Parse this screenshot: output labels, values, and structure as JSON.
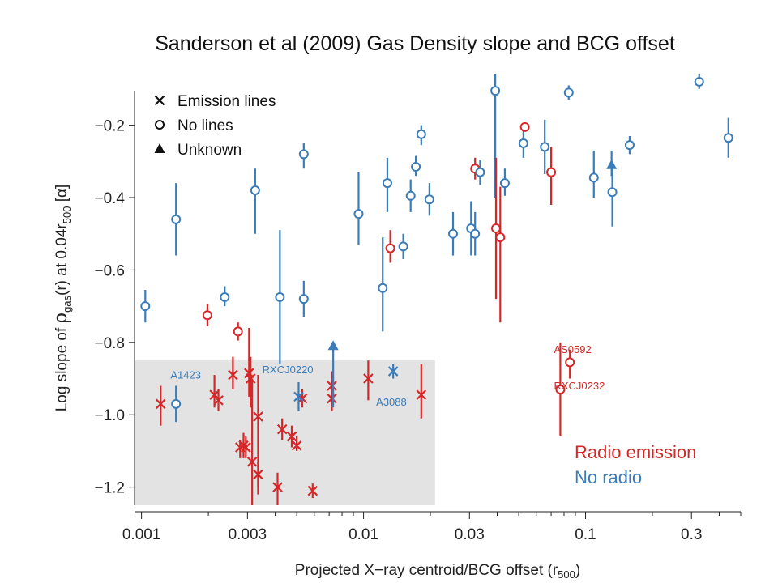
{
  "title": "Sanderson et al (2009)   Gas Density slope and BCG offset",
  "chart_data": {
    "type": "scatter",
    "xscale": "log",
    "xlim": [
      0.00093,
      0.5
    ],
    "ylim": [
      -1.25,
      -0.06
    ],
    "xlabel": {
      "pre": "Projected X−ray centroid/BCG offset (r",
      "sub": "500",
      "post": ")"
    },
    "ylabel": {
      "p1": "Log slope of ",
      "rho": "ρ",
      "sub1": "gas",
      "p2": "(r) at 0.04r",
      "sub2": "500",
      "p3": " [α]"
    },
    "xticks": [
      0.001,
      0.003,
      0.01,
      0.03,
      0.1,
      0.3
    ],
    "xtick_labels": [
      "0.001",
      "0.003",
      "0.01",
      "0.03",
      "0.1",
      "0.3"
    ],
    "yticks": [
      -0.2,
      -0.4,
      -0.6,
      -0.8,
      -1.0,
      -1.2
    ],
    "ytick_labels": [
      "−0.2",
      "−0.4",
      "−0.6",
      "−0.8",
      "−1.0",
      "−1.2"
    ],
    "grid": false,
    "shaded_region": {
      "x": [
        0.00093,
        0.021
      ],
      "y": [
        -1.25,
        -0.85
      ]
    },
    "legend_markers": [
      {
        "symbol": "cross",
        "label": "Emission lines"
      },
      {
        "symbol": "circle",
        "label": "No lines"
      },
      {
        "symbol": "triangle",
        "label": "Unknown"
      }
    ],
    "legend_colors": [
      {
        "label": "Radio emission",
        "color": "#d62728"
      },
      {
        "label": "No radio",
        "color": "#3a7cba"
      }
    ],
    "colors": {
      "radio": "#d62728",
      "no_radio": "#3a7cba"
    },
    "annotations": [
      {
        "text": "A1423",
        "x": 0.00135,
        "y": -0.9,
        "color": "#3a7cba"
      },
      {
        "text": "RXCJ0220",
        "x": 0.0035,
        "y": -0.885,
        "color": "#3a7cba"
      },
      {
        "text": "A3088",
        "x": 0.0114,
        "y": -0.975,
        "color": "#3a7cba"
      },
      {
        "text": "AS0592",
        "x": 0.072,
        "y": -0.83,
        "color": "#d62728"
      },
      {
        "text": "RXCJ0232",
        "x": 0.072,
        "y": -0.93,
        "color": "#d62728"
      }
    ],
    "series": [
      {
        "name": "Emission lines",
        "symbol": "cross",
        "points": [
          {
            "x": 0.00122,
            "y": -0.97,
            "lo": -1.03,
            "hi": -0.92,
            "radio": true
          },
          {
            "x": 0.00213,
            "y": -0.945,
            "lo": -0.98,
            "hi": -0.89,
            "radio": true
          },
          {
            "x": 0.00222,
            "y": -0.96,
            "lo": -0.99,
            "hi": -0.93,
            "radio": true
          },
          {
            "x": 0.00258,
            "y": -0.89,
            "lo": -0.93,
            "hi": -0.84,
            "radio": true
          },
          {
            "x": 0.00278,
            "y": -1.09,
            "lo": -1.12,
            "hi": -1.07,
            "radio": true
          },
          {
            "x": 0.00288,
            "y": -1.085,
            "lo": -1.12,
            "hi": -1.05,
            "radio": true
          },
          {
            "x": 0.00295,
            "y": -1.09,
            "lo": -1.12,
            "hi": -1.06,
            "radio": true
          },
          {
            "x": 0.00305,
            "y": -0.885,
            "lo": -0.95,
            "hi": -0.76,
            "radio": true
          },
          {
            "x": 0.0031,
            "y": -0.9,
            "lo": -0.98,
            "hi": -0.84,
            "radio": true
          },
          {
            "x": 0.00315,
            "y": -1.13,
            "lo": -1.25,
            "hi": -0.9,
            "radio": true
          },
          {
            "x": 0.00335,
            "y": -1.005,
            "lo": -1.22,
            "hi": -0.89,
            "radio": true
          },
          {
            "x": 0.00335,
            "y": -1.165,
            "lo": -1.2,
            "hi": -1.13,
            "radio": true
          },
          {
            "x": 0.0041,
            "y": -1.2,
            "lo": -1.25,
            "hi": -1.16,
            "radio": true
          },
          {
            "x": 0.0043,
            "y": -1.04,
            "lo": -1.07,
            "hi": -1.01,
            "radio": true
          },
          {
            "x": 0.00475,
            "y": -1.06,
            "lo": -1.09,
            "hi": -1.03,
            "radio": true
          },
          {
            "x": 0.005,
            "y": -1.085,
            "lo": -1.1,
            "hi": -1.06,
            "radio": true
          },
          {
            "x": 0.0053,
            "y": -0.955,
            "lo": -0.98,
            "hi": -0.93,
            "radio": true
          },
          {
            "x": 0.0059,
            "y": -1.21,
            "lo": -1.23,
            "hi": -1.19,
            "radio": true
          },
          {
            "x": 0.0072,
            "y": -0.92,
            "lo": -0.97,
            "hi": -0.88,
            "radio": true
          },
          {
            "x": 0.0072,
            "y": -0.955,
            "lo": -0.99,
            "hi": -0.93,
            "radio": true
          },
          {
            "x": 0.0105,
            "y": -0.9,
            "lo": -0.96,
            "hi": -0.85,
            "radio": true
          },
          {
            "x": 0.0182,
            "y": -0.945,
            "lo": -1.01,
            "hi": -0.86,
            "radio": true
          },
          {
            "x": 0.0051,
            "y": -0.95,
            "lo": -0.99,
            "hi": -0.91,
            "radio": false
          },
          {
            "x": 0.0136,
            "y": -0.88,
            "lo": -0.9,
            "hi": -0.86,
            "radio": false
          }
        ]
      },
      {
        "name": "No lines",
        "symbol": "circle",
        "points": [
          {
            "x": 0.00104,
            "y": -0.7,
            "lo": -0.745,
            "hi": -0.655,
            "radio": false
          },
          {
            "x": 0.00143,
            "y": -0.46,
            "lo": -0.56,
            "hi": -0.36,
            "radio": false
          },
          {
            "x": 0.00143,
            "y": -0.97,
            "lo": -1.02,
            "hi": -0.92,
            "radio": false
          },
          {
            "x": 0.00198,
            "y": -0.725,
            "lo": -0.755,
            "hi": -0.695,
            "radio": true
          },
          {
            "x": 0.00237,
            "y": -0.675,
            "lo": -0.7,
            "hi": -0.645,
            "radio": false
          },
          {
            "x": 0.00272,
            "y": -0.77,
            "lo": -0.795,
            "hi": -0.745,
            "radio": true
          },
          {
            "x": 0.00325,
            "y": -0.38,
            "lo": -0.5,
            "hi": -0.32,
            "radio": false
          },
          {
            "x": 0.0042,
            "y": -0.675,
            "lo": -0.86,
            "hi": -0.49,
            "radio": false
          },
          {
            "x": 0.00538,
            "y": -0.28,
            "lo": -0.32,
            "hi": -0.25,
            "radio": false
          },
          {
            "x": 0.00538,
            "y": -0.68,
            "lo": -0.73,
            "hi": -0.63,
            "radio": false
          },
          {
            "x": 0.0095,
            "y": -0.445,
            "lo": -0.53,
            "hi": -0.33,
            "radio": false
          },
          {
            "x": 0.0122,
            "y": -0.65,
            "lo": -0.77,
            "hi": -0.51,
            "radio": false
          },
          {
            "x": 0.0128,
            "y": -0.36,
            "lo": -0.44,
            "hi": -0.29,
            "radio": false
          },
          {
            "x": 0.0132,
            "y": -0.54,
            "lo": -0.58,
            "hi": -0.49,
            "radio": true
          },
          {
            "x": 0.0151,
            "y": -0.535,
            "lo": -0.57,
            "hi": -0.5,
            "radio": false
          },
          {
            "x": 0.0163,
            "y": -0.395,
            "lo": -0.44,
            "hi": -0.35,
            "radio": false
          },
          {
            "x": 0.0172,
            "y": -0.315,
            "lo": -0.34,
            "hi": -0.285,
            "radio": false
          },
          {
            "x": 0.0182,
            "y": -0.225,
            "lo": -0.255,
            "hi": -0.2,
            "radio": false
          },
          {
            "x": 0.0198,
            "y": -0.405,
            "lo": -0.45,
            "hi": -0.36,
            "radio": false
          },
          {
            "x": 0.0253,
            "y": -0.5,
            "lo": -0.56,
            "hi": -0.44,
            "radio": false
          },
          {
            "x": 0.0305,
            "y": -0.485,
            "lo": -0.56,
            "hi": -0.41,
            "radio": false
          },
          {
            "x": 0.0318,
            "y": -0.5,
            "lo": -0.56,
            "hi": -0.44,
            "radio": false
          },
          {
            "x": 0.0318,
            "y": -0.32,
            "lo": -0.35,
            "hi": -0.29,
            "radio": true
          },
          {
            "x": 0.0335,
            "y": -0.33,
            "lo": -0.365,
            "hi": -0.295,
            "radio": false
          },
          {
            "x": 0.0392,
            "y": -0.105,
            "lo": -0.4,
            "hi": -0.06,
            "radio": false
          },
          {
            "x": 0.0395,
            "y": -0.485,
            "lo": -0.68,
            "hi": -0.29,
            "radio": true
          },
          {
            "x": 0.0413,
            "y": -0.51,
            "lo": -0.745,
            "hi": -0.37,
            "radio": true
          },
          {
            "x": 0.0433,
            "y": -0.36,
            "lo": -0.395,
            "hi": -0.32,
            "radio": false
          },
          {
            "x": 0.0525,
            "y": -0.25,
            "lo": -0.29,
            "hi": -0.21,
            "radio": false
          },
          {
            "x": 0.0533,
            "y": -0.205,
            "lo": -0.215,
            "hi": -0.195,
            "radio": true
          },
          {
            "x": 0.0655,
            "y": -0.26,
            "lo": -0.335,
            "hi": -0.185,
            "radio": false
          },
          {
            "x": 0.07,
            "y": -0.33,
            "lo": -0.42,
            "hi": -0.26,
            "radio": true
          },
          {
            "x": 0.084,
            "y": -0.11,
            "lo": -0.13,
            "hi": -0.09,
            "radio": false
          },
          {
            "x": 0.085,
            "y": -0.855,
            "lo": -0.9,
            "hi": -0.82,
            "radio": true
          },
          {
            "x": 0.077,
            "y": -0.93,
            "lo": -1.06,
            "hi": -0.8,
            "radio": true
          },
          {
            "x": 0.109,
            "y": -0.345,
            "lo": -0.4,
            "hi": -0.27,
            "radio": false
          },
          {
            "x": 0.132,
            "y": -0.385,
            "lo": -0.48,
            "hi": -0.3,
            "radio": false
          },
          {
            "x": 0.158,
            "y": -0.255,
            "lo": -0.28,
            "hi": -0.23,
            "radio": false
          },
          {
            "x": 0.325,
            "y": -0.08,
            "lo": -0.1,
            "hi": -0.06,
            "radio": false
          },
          {
            "x": 0.44,
            "y": -0.235,
            "lo": -0.29,
            "hi": -0.18,
            "radio": false
          }
        ]
      },
      {
        "name": "Unknown",
        "symbol": "triangle",
        "points": [
          {
            "x": 0.0073,
            "y": -0.81,
            "lo": -0.98,
            "hi": -0.8,
            "radio": false
          },
          {
            "x": 0.131,
            "y": -0.31,
            "lo": -0.34,
            "hi": -0.27,
            "radio": false
          }
        ]
      }
    ]
  }
}
